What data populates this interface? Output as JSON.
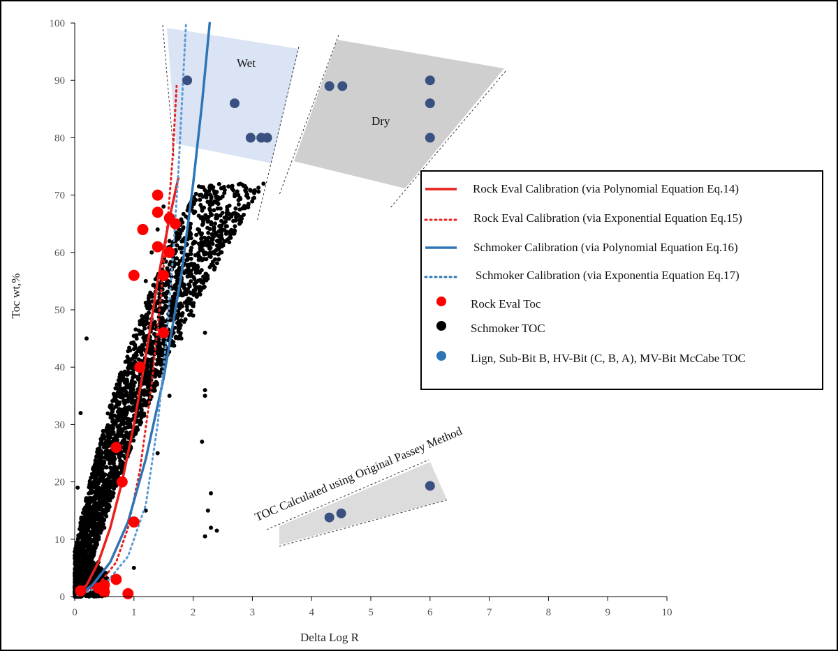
{
  "chart_data": {
    "type": "scatter",
    "xlabel": "Delta Log R",
    "ylabel": "Toc wt,%",
    "xlim": [
      0,
      10
    ],
    "ylim": [
      0,
      100
    ],
    "xticks": [
      "0",
      "1",
      "2",
      "3",
      "4",
      "5",
      "6",
      "7",
      "8",
      "9",
      "10"
    ],
    "yticks": [
      "0",
      "10",
      "20",
      "30",
      "40",
      "50",
      "60",
      "70",
      "80",
      "90",
      "100"
    ],
    "grid": false,
    "legend_position": "right",
    "legend": [
      {
        "label": "Rock Eval Calibration (via Polynomial Equation Eq.14)",
        "style": "solid-line",
        "color": "#e8201c"
      },
      {
        "label": "Rock Eval Calibration (via Exponential Equation Eq.15)",
        "style": "dotted-line",
        "color": "#e8201c"
      },
      {
        "label": "Schmoker Calibration (via Polynomial Equation Eq.16)",
        "style": "solid-line",
        "color": "#2e75b6"
      },
      {
        "label": "Schmoker Calibration (via Exponentia Equation Eq.17)",
        "style": "dotted-line",
        "color": "#2e75b6"
      },
      {
        "label": "Rock Eval Toc",
        "style": "marker",
        "color": "#ff0000"
      },
      {
        "label": "Schmoker TOC",
        "style": "marker",
        "color": "#000000"
      },
      {
        "label": "Lign, Sub-Bit B, HV-Bit (C, B, A), MV-Bit  McCabe TOC",
        "style": "marker",
        "color": "#2e75b6"
      }
    ],
    "annotations": {
      "wet": "Wet",
      "dry": "Dry",
      "passey": "TOC Calculated using Original Passey Method"
    },
    "colors": {
      "rock_eval": "#ff0000",
      "schmoker_points": "#000000",
      "mccabe": "#3a5080",
      "schmoker_line": "#2e75b6",
      "schmoker_dotted": "#5b9bd5",
      "rock_eval_line": "#e8201c",
      "wet_fill": "#dbe4f4",
      "dry_fill": "#cfcfcf",
      "passey_fill": "#dcdcdc"
    },
    "series": [
      {
        "name": "Rock Eval Toc",
        "points": [
          [
            0.1,
            1
          ],
          [
            0.4,
            1.5
          ],
          [
            0.5,
            0.8
          ],
          [
            0.5,
            2
          ],
          [
            0.7,
            3
          ],
          [
            0.9,
            0.5
          ],
          [
            0.7,
            26
          ],
          [
            0.8,
            20
          ],
          [
            1.0,
            13
          ],
          [
            1.1,
            40
          ],
          [
            1.0,
            56
          ],
          [
            1.15,
            64
          ],
          [
            1.4,
            61
          ],
          [
            1.5,
            56
          ],
          [
            1.5,
            46
          ],
          [
            1.4,
            67
          ],
          [
            1.4,
            70
          ],
          [
            1.6,
            66
          ],
          [
            1.6,
            60
          ],
          [
            1.7,
            65
          ]
        ]
      },
      {
        "name": "Lign, Sub-Bit B, HV-Bit (C, B, A), MV-Bit  McCabe TOC",
        "points": [
          [
            1.9,
            90
          ],
          [
            2.7,
            86
          ],
          [
            2.97,
            80
          ],
          [
            3.15,
            80
          ],
          [
            3.25,
            80
          ],
          [
            4.3,
            89
          ],
          [
            4.52,
            89
          ],
          [
            6.0,
            90
          ],
          [
            6.0,
            86
          ],
          [
            6.0,
            80
          ],
          [
            4.3,
            13.8
          ],
          [
            4.5,
            14.5
          ],
          [
            6.0,
            19.3
          ]
        ]
      },
      {
        "name": "Schmoker TOC",
        "cluster_points": [
          [
            0.0,
            0.5
          ],
          [
            0.05,
            3
          ],
          [
            0.1,
            6
          ],
          [
            0.15,
            1
          ],
          [
            0.2,
            4
          ],
          [
            0.25,
            9
          ],
          [
            0.3,
            2
          ],
          [
            0.4,
            6
          ],
          [
            0.5,
            12
          ],
          [
            0.6,
            18
          ],
          [
            0.7,
            22
          ],
          [
            0.8,
            28
          ],
          [
            0.9,
            34
          ],
          [
            1.0,
            42
          ],
          [
            1.1,
            48
          ],
          [
            1.2,
            55
          ],
          [
            1.3,
            60
          ],
          [
            1.4,
            64
          ],
          [
            1.5,
            68
          ],
          [
            1.6,
            62
          ],
          [
            1.7,
            58
          ],
          [
            1.8,
            55
          ],
          [
            1.9,
            50
          ],
          [
            1.0,
            5
          ],
          [
            1.2,
            15
          ],
          [
            1.4,
            25
          ],
          [
            1.6,
            35
          ],
          [
            1.8,
            45
          ],
          [
            2.0,
            49
          ],
          [
            2.2,
            36
          ],
          [
            2.15,
            27
          ],
          [
            2.3,
            18
          ],
          [
            2.25,
            15
          ],
          [
            2.3,
            12
          ],
          [
            2.4,
            11.5
          ],
          [
            2.2,
            10.5
          ],
          [
            2.2,
            35
          ],
          [
            2.2,
            46
          ],
          [
            0.1,
            32
          ],
          [
            0.2,
            45
          ],
          [
            0.05,
            19
          ]
        ]
      }
    ],
    "curves": [
      {
        "name": "Rock Eval Calibration (via Polynomial Equation Eq.14)",
        "style": "solid",
        "x": [
          0.05,
          0.2,
          0.4,
          0.6,
          0.8,
          1.0,
          1.2,
          1.4,
          1.6,
          1.75
        ],
        "y": [
          0.5,
          2,
          6,
          12,
          20,
          30,
          42,
          55,
          66,
          73
        ]
      },
      {
        "name": "Rock Eval Calibration (via Exponential Equation Eq.15)",
        "style": "dotted",
        "x": [
          0.05,
          0.4,
          0.7,
          0.9,
          1.1,
          1.3,
          1.45,
          1.55,
          1.65,
          1.72
        ],
        "y": [
          0.3,
          2,
          6,
          12,
          22,
          37,
          52,
          63,
          76,
          89
        ]
      },
      {
        "name": "Schmoker Calibration (via Polynomial Equation Eq.16)",
        "style": "solid",
        "x": [
          0.05,
          0.3,
          0.6,
          0.9,
          1.2,
          1.5,
          1.8,
          2.0,
          2.15,
          2.28
        ],
        "y": [
          0.2,
          2,
          6,
          13,
          24,
          38,
          56,
          72,
          86,
          100
        ]
      },
      {
        "name": "Schmoker Calibration (via Exponentia Equation Eq.17)",
        "style": "dotted",
        "x": [
          0.05,
          0.5,
          0.9,
          1.2,
          1.4,
          1.55,
          1.65,
          1.75,
          1.82,
          1.88
        ],
        "y": [
          0.2,
          2,
          7,
          16,
          30,
          45,
          58,
          74,
          88,
          100
        ]
      }
    ]
  }
}
